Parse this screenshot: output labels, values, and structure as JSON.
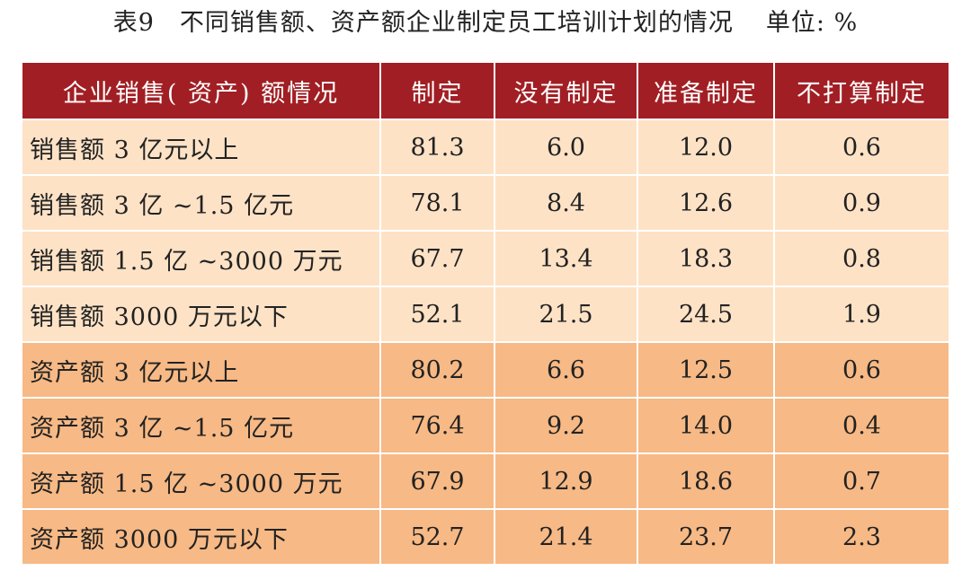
{
  "caption": {
    "title": "表9　不同销售额、资产额企业制定员工培训计划的情况",
    "unit": "单位: %"
  },
  "table": {
    "headers": [
      "企业销售( 资产) 额情况",
      "制定",
      "没有制定",
      "准备制定",
      "不打算制定"
    ],
    "rows": [
      {
        "group": "sales",
        "label": "销售额 3 亿元以上",
        "values": [
          "81.3",
          "6.0",
          "12.0",
          "0.6"
        ]
      },
      {
        "group": "sales",
        "label": "销售额 3 亿 ~1.5 亿元",
        "values": [
          "78.1",
          "8.4",
          "12.6",
          "0.9"
        ]
      },
      {
        "group": "sales",
        "label": "销售额 1.5 亿 ~3000 万元",
        "values": [
          "67.7",
          "13.4",
          "18.3",
          "0.8"
        ]
      },
      {
        "group": "sales",
        "label": "销售额 3000 万元以下",
        "values": [
          "52.1",
          "21.5",
          "24.5",
          "1.9"
        ]
      },
      {
        "group": "assets",
        "label": "资产额 3 亿元以上",
        "values": [
          "80.2",
          "6.6",
          "12.5",
          "0.6"
        ]
      },
      {
        "group": "assets",
        "label": "资产额 3 亿 ~1.5 亿元",
        "values": [
          "76.4",
          "9.2",
          "14.0",
          "0.4"
        ]
      },
      {
        "group": "assets",
        "label": "资产额 1.5 亿 ~3000 万元",
        "values": [
          "67.9",
          "12.9",
          "18.6",
          "0.7"
        ]
      },
      {
        "group": "assets",
        "label": "资产额 3000 万元以下",
        "values": [
          "52.7",
          "21.4",
          "23.7",
          "2.3"
        ]
      }
    ]
  },
  "colors": {
    "header_bg": "#a11f24",
    "sales_row_bg": "#fde2c6",
    "assets_row_bg": "#f7b985"
  }
}
